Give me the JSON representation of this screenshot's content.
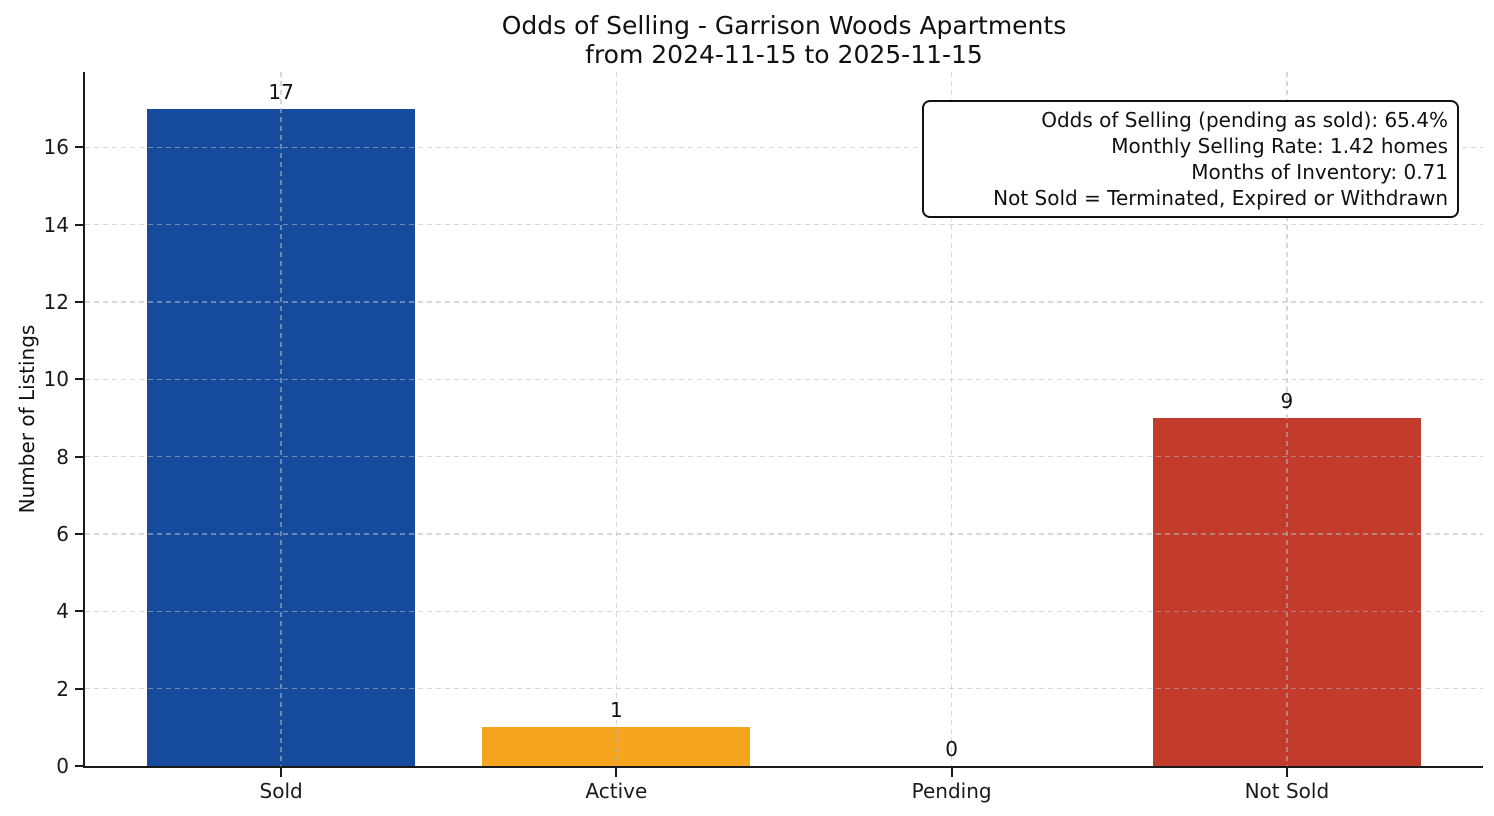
{
  "chart_data": {
    "type": "bar",
    "title": "Odds of Selling - Garrison Woods Apartments\nfrom 2024-11-15 to 2025-11-15",
    "xlabel": "",
    "ylabel": "Number of Listings",
    "categories": [
      "Sold",
      "Active",
      "Pending",
      "Not Sold"
    ],
    "values": [
      17,
      1,
      0,
      9
    ],
    "bar_colors": [
      "#164A9C",
      "#F5A41E",
      null,
      "#C33B2B"
    ],
    "yticks": [
      0,
      2,
      4,
      6,
      8,
      10,
      12,
      14,
      16
    ],
    "ylim": [
      0,
      17.95
    ],
    "grid": true,
    "grid_style": "dashed",
    "legend": null,
    "annotation_lines": [
      "Odds of Selling (pending as sold): 65.4%",
      "Monthly Selling Rate: 1.42 homes",
      "Months of Inventory: 0.71",
      "Not Sold = Terminated, Expired or Withdrawn"
    ]
  }
}
